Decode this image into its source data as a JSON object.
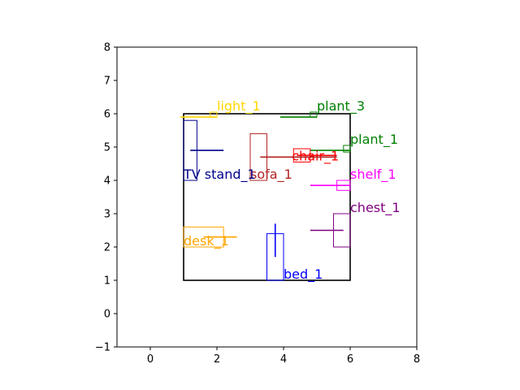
{
  "chart_data": {
    "type": "scatter",
    "title": "",
    "xlabel": "",
    "ylabel": "",
    "xlim": [
      -1,
      8
    ],
    "ylim": [
      -1,
      8
    ],
    "xticks": [
      "0",
      "2",
      "4",
      "6",
      "8"
    ],
    "yticks": [
      "−1",
      "0",
      "1",
      "2",
      "3",
      "4",
      "5",
      "6",
      "7",
      "8"
    ],
    "grid": false,
    "room": {
      "x0": 1,
      "y0": 1,
      "x1": 6,
      "y1": 6,
      "color": "#000000"
    },
    "objects": [
      {
        "name": "light_1",
        "color": "#FFD700",
        "rect": [
          1.8,
          5.9,
          2.0,
          6.05
        ],
        "line": [
          [
            0.9,
            5.9
          ],
          [
            2.0,
            5.9
          ]
        ],
        "label_pos": [
          2.0,
          6.1
        ]
      },
      {
        "name": "plant_3",
        "color": "#008000",
        "rect": [
          4.8,
          5.9,
          5.0,
          6.05
        ],
        "line": [
          [
            3.9,
            5.9
          ],
          [
            5.0,
            5.9
          ]
        ],
        "label_pos": [
          5.0,
          6.1
        ]
      },
      {
        "name": "plant_1",
        "color": "#008000",
        "rect": [
          5.8,
          4.85,
          6.0,
          5.05
        ],
        "line": [
          [
            4.8,
            4.9
          ],
          [
            6.0,
            4.9
          ]
        ],
        "label_pos": [
          6.0,
          5.1
        ]
      },
      {
        "name": "chair_1",
        "color": "#FF0000",
        "rect": [
          4.3,
          4.55,
          4.8,
          4.95
        ],
        "line": [
          [
            4.4,
            4.75
          ],
          [
            5.6,
            4.75
          ]
        ],
        "label_pos": [
          4.25,
          4.6
        ]
      },
      {
        "name": "sofa_1",
        "color": "#B22222",
        "rect": [
          3.0,
          4.0,
          3.5,
          5.4
        ],
        "line": [
          [
            3.3,
            4.7
          ],
          [
            5.6,
            4.7
          ]
        ],
        "label_pos": [
          3.0,
          4.05
        ]
      },
      {
        "name": "TV stand_1",
        "color": "#00008B",
        "rect": [
          1.0,
          4.0,
          1.4,
          5.8
        ],
        "line": [
          [
            1.2,
            4.9
          ],
          [
            2.2,
            4.9
          ]
        ],
        "label_pos": [
          1.0,
          4.05
        ]
      },
      {
        "name": "shelf_1",
        "color": "#FF00FF",
        "rect": [
          5.6,
          3.7,
          6.0,
          4.0
        ],
        "line": [
          [
            4.8,
            3.85
          ],
          [
            6.0,
            3.85
          ]
        ],
        "label_pos": [
          6.0,
          4.05
        ]
      },
      {
        "name": "chest_1",
        "color": "#800080",
        "rect": [
          5.5,
          2.0,
          6.0,
          3.0
        ],
        "line": [
          [
            4.8,
            2.5
          ],
          [
            5.8,
            2.5
          ]
        ],
        "label_pos": [
          6.0,
          3.05
        ]
      },
      {
        "name": "desk_1",
        "color": "#FFA500",
        "rect": [
          1.0,
          2.0,
          2.2,
          2.6
        ],
        "line": [
          [
            1.6,
            2.3
          ],
          [
            2.6,
            2.3
          ]
        ],
        "label_pos": [
          1.0,
          2.05
        ]
      },
      {
        "name": "bed_1",
        "color": "#0000FF",
        "rect": [
          3.5,
          1.0,
          4.0,
          2.4
        ],
        "line": [
          [
            3.75,
            1.7
          ],
          [
            3.75,
            2.7
          ]
        ],
        "label_pos": [
          4.0,
          1.05
        ]
      }
    ]
  }
}
